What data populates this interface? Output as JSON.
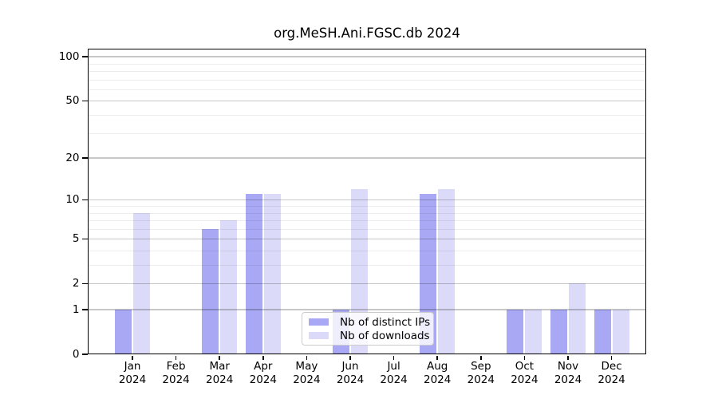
{
  "title": "org.MeSH.Ani.FGSC.db 2024",
  "chart_data": {
    "type": "bar",
    "title": "org.MeSH.Ani.FGSC.db 2024",
    "scale": "log10(1+y)",
    "categories": [
      "Jan",
      "Feb",
      "Mar",
      "Apr",
      "May",
      "Jun",
      "Jul",
      "Aug",
      "Sep",
      "Oct",
      "Nov",
      "Dec"
    ],
    "year": "2024",
    "series": [
      {
        "name": "Nb of distinct IPs",
        "color": "#a8a8f4",
        "values": [
          1,
          0,
          6,
          11,
          0,
          1,
          0,
          11,
          0,
          1,
          1,
          1
        ]
      },
      {
        "name": "Nb of downloads",
        "color": "#dbdbf9",
        "values": [
          8,
          0,
          7,
          11,
          0,
          12,
          0,
          12,
          0,
          1,
          2,
          1
        ]
      }
    ],
    "yticks": [
      0,
      1,
      2,
      5,
      10,
      20,
      50,
      100
    ],
    "yticks_minor": [
      3,
      4,
      6,
      7,
      8,
      9,
      30,
      40,
      60,
      70,
      80,
      90
    ],
    "ylim": [
      0,
      113.6
    ],
    "xlabel": "",
    "ylabel": "",
    "grid": "horizontal",
    "legend_position": "lower center"
  },
  "legend": {
    "items": [
      {
        "label": "Nb of distinct IPs",
        "color": "#a8a8f4"
      },
      {
        "label": "Nb of downloads",
        "color": "#dbdbf9"
      }
    ]
  },
  "colors": {
    "bar_distinct_ips": "#a8a8f4",
    "bar_downloads": "#dbdbf9",
    "spine": "#000000",
    "grid_major": "#c4c4c4",
    "grid_minor": "#ededed",
    "legend_border": "#cccccc",
    "background": "#ffffff"
  }
}
